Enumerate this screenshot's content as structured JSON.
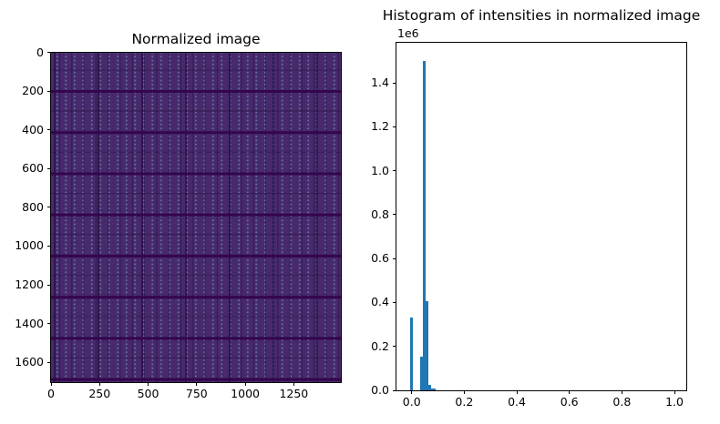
{
  "figure": {
    "background": "#ffffff",
    "text_color": "#000000"
  },
  "left_plot": {
    "title": "Normalized image",
    "xticks": [
      {
        "label": "0",
        "value": 0
      },
      {
        "label": "250",
        "value": 250
      },
      {
        "label": "500",
        "value": 500
      },
      {
        "label": "750",
        "value": 750
      },
      {
        "label": "1000",
        "value": 1000
      },
      {
        "label": "1250",
        "value": 1250
      }
    ],
    "yticks": [
      {
        "label": "0",
        "value": 0
      },
      {
        "label": "200",
        "value": 200
      },
      {
        "label": "400",
        "value": 400
      },
      {
        "label": "600",
        "value": 600
      },
      {
        "label": "800",
        "value": 800
      },
      {
        "label": "1000",
        "value": 1000
      },
      {
        "label": "1200",
        "value": 1200
      },
      {
        "label": "1400",
        "value": 1400
      },
      {
        "label": "1600",
        "value": 1600
      }
    ],
    "image_colors": {
      "base": "#482a6c",
      "cell_border": "#241047",
      "busbar_band": "#34024c",
      "dot": "#6a9ec0"
    }
  },
  "right_plot": {
    "title": "Histogram of intensities in normalized image",
    "offset_label": "1e6",
    "bar_color": "#1f77b4",
    "xticks": [
      {
        "label": "0.0",
        "value": 0.0
      },
      {
        "label": "0.2",
        "value": 0.2
      },
      {
        "label": "0.4",
        "value": 0.4
      },
      {
        "label": "0.6",
        "value": 0.6
      },
      {
        "label": "0.8",
        "value": 0.8
      },
      {
        "label": "1.0",
        "value": 1.0
      }
    ],
    "yticks": [
      {
        "label": "0.0",
        "value": 0
      },
      {
        "label": "0.2",
        "value": 200000
      },
      {
        "label": "0.4",
        "value": 400000
      },
      {
        "label": "0.6",
        "value": 600000
      },
      {
        "label": "0.8",
        "value": 800000
      },
      {
        "label": "1.0",
        "value": 1000000
      },
      {
        "label": "1.2",
        "value": 1200000
      },
      {
        "label": "1.4",
        "value": 1400000
      }
    ]
  },
  "chart_data": [
    {
      "type": "heatmap",
      "title": "Normalized image",
      "xlabel": "",
      "ylabel": "",
      "xlim": [
        0,
        1490
      ],
      "ylim": [
        1700,
        0
      ],
      "xticks": [
        0,
        250,
        500,
        750,
        1000,
        1250
      ],
      "yticks": [
        0,
        200,
        400,
        600,
        800,
        1000,
        1200,
        1400,
        1600
      ],
      "description": "Uniformly dark purple normalized image (intensities ~0.0-0.09 on a viridis-like low end) of a photovoltaic-module-style scene: a grid of rectangular cells with thin darker borders, darker horizontal busbar bands roughly every 210 rows, and a regular lattice of slightly lighter small dots inside each cell",
      "approx_image_size": [
        1490,
        1700
      ]
    },
    {
      "type": "bar",
      "title": "Histogram of intensities in normalized image",
      "xlabel": "",
      "ylabel": "",
      "xlim": [
        -0.058,
        1.045
      ],
      "ylim": [
        0,
        1585000
      ],
      "y_offset_label": "1e6",
      "bar_color": "#1f77b4",
      "grid": false,
      "legend": false,
      "bars": [
        {
          "x0": -0.005,
          "x1": 0.0055,
          "count": 330000
        },
        {
          "x0": 0.033,
          "x1": 0.0435,
          "count": 155000
        },
        {
          "x0": 0.0435,
          "x1": 0.054,
          "count": 1500000
        },
        {
          "x0": 0.054,
          "x1": 0.0645,
          "count": 405000
        },
        {
          "x0": 0.0645,
          "x1": 0.075,
          "count": 25000
        },
        {
          "x0": 0.075,
          "x1": 0.0895,
          "count": 8000
        }
      ],
      "note": "Pixel-intensity histogram; nearly all mass lies between 0.0 and 0.09, peak bin ~0.05 reaches 1.5e6 counts"
    }
  ]
}
